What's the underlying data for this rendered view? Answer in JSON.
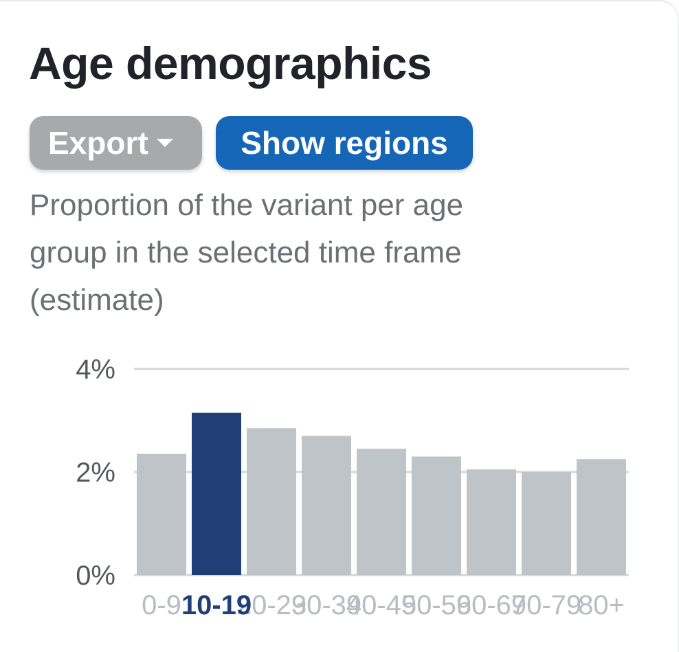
{
  "title": "Age demographics",
  "buttons": {
    "export_label": "Export",
    "regions_label": "Show regions"
  },
  "description": "Proportion of the variant per age group in the selected time frame (estimate)",
  "colors": {
    "bar": "#bfc4c8",
    "bar_selected": "#213f77",
    "grid": "#d4d6d9",
    "axis_text": "#55585d",
    "tick_text": "#b9bcc0",
    "tick_text_selected": "#213f77",
    "export_bg": "#a8a9ab",
    "regions_bg": "#1566b7"
  },
  "chart_data": {
    "type": "bar",
    "categories": [
      "0-9",
      "10-19",
      "20-29",
      "30-39",
      "40-49",
      "50-59",
      "60-69",
      "70-79",
      "80+"
    ],
    "values": [
      2.35,
      3.15,
      2.85,
      2.7,
      2.45,
      2.3,
      2.05,
      2.0,
      2.25
    ],
    "selected_index": 1,
    "ylim": [
      0,
      4
    ],
    "yticks": [
      0,
      2,
      4
    ],
    "ytick_labels": [
      "0%",
      "2%",
      "4%"
    ],
    "xlabel": "",
    "ylabel": "",
    "grid": true
  }
}
